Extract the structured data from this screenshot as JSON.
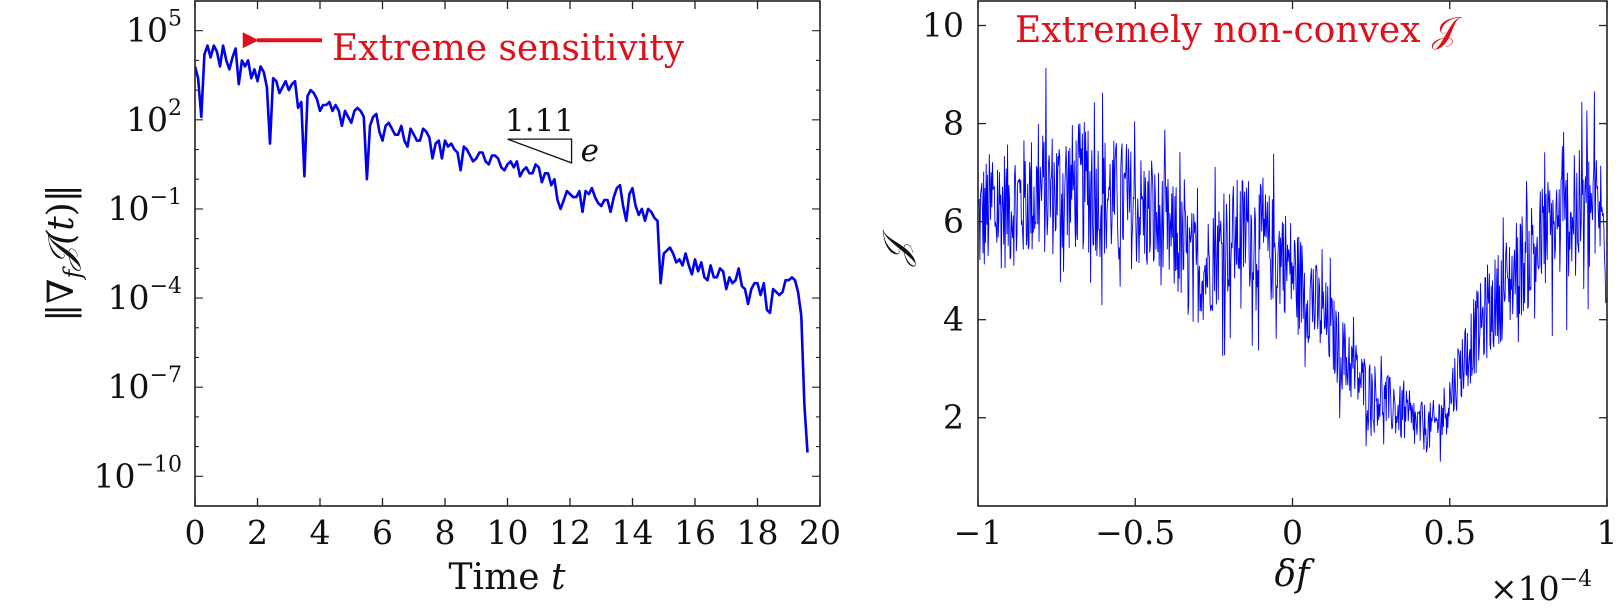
{
  "chart_data": [
    {
      "type": "line",
      "xlabel_text": "Time",
      "xlabel_var": "t",
      "ylabel": "‖∇_f 𝒥(t)‖",
      "ylabel_parts": {
        "open": "‖∇",
        "sub": "f",
        "mid": "𝒥(",
        "var": "t",
        "close": ")‖"
      },
      "xlim": [
        0,
        20
      ],
      "ylog_exp_range": [
        -11,
        6
      ],
      "xticks": [
        "0",
        "2",
        "4",
        "6",
        "8",
        "10",
        "12",
        "14",
        "16",
        "18",
        "20"
      ],
      "yticks": [
        {
          "base": "10",
          "exp": "5",
          "value": 5
        },
        {
          "base": "10",
          "exp": "2",
          "value": 2
        },
        {
          "base": "10",
          "exp": "−1",
          "value": -1
        },
        {
          "base": "10",
          "exp": "−4",
          "value": -4
        },
        {
          "base": "10",
          "exp": "−7",
          "value": -7
        },
        {
          "base": "10",
          "exp": "−10",
          "value": -10
        }
      ],
      "scale": "log",
      "grid": false,
      "color": "#0000ee",
      "annotation": {
        "text": "Extreme sensitivity",
        "color": "#e0101a",
        "arrow_tip": [
          1.7,
          4.68
        ]
      },
      "slope_triangle": {
        "top_label": "1.11",
        "side_label": "e",
        "p1": [
          10.0,
          1.35
        ],
        "p2": [
          12.05,
          0.55
        ],
        "p3": [
          12.05,
          1.35
        ]
      },
      "series": [
        {
          "x": [
            0.0,
            0.1,
            0.2,
            0.3,
            0.4,
            0.5,
            0.6,
            0.7,
            0.8,
            0.9,
            1.0,
            1.1,
            1.2,
            1.3,
            1.4,
            1.5,
            1.6,
            1.7,
            1.8,
            1.9,
            2.0,
            2.1,
            2.2,
            2.3,
            2.4,
            2.5,
            2.6,
            2.7,
            2.8,
            2.9,
            3.0,
            3.1,
            3.2,
            3.3,
            3.4,
            3.5,
            3.6,
            3.7,
            3.8,
            3.9,
            4.0,
            4.1,
            4.2,
            4.3,
            4.4,
            4.5,
            4.6,
            4.7,
            4.8,
            4.9,
            5.0,
            5.1,
            5.2,
            5.3,
            5.4,
            5.5,
            5.6,
            5.7,
            5.8,
            5.9,
            6.0,
            6.1,
            6.2,
            6.3,
            6.4,
            6.5,
            6.6,
            6.7,
            6.8,
            6.9,
            7.0,
            7.1,
            7.2,
            7.3,
            7.4,
            7.5,
            7.6,
            7.7,
            7.8,
            7.9,
            8.0,
            8.1,
            8.2,
            8.3,
            8.4,
            8.5,
            8.6,
            8.7,
            8.8,
            8.9,
            9.0,
            9.1,
            9.2,
            9.3,
            9.4,
            9.5,
            9.6,
            9.7,
            9.8,
            9.9,
            10.0,
            10.1,
            10.2,
            10.3,
            10.4,
            10.5,
            10.6,
            10.7,
            10.8,
            10.9,
            11.0,
            11.1,
            11.2,
            11.3,
            11.4,
            11.5,
            11.6,
            11.7,
            11.8,
            11.9,
            12.0,
            12.1,
            12.2,
            12.3,
            12.4,
            12.5,
            12.6,
            12.7,
            12.8,
            12.9,
            13.0,
            13.1,
            13.2,
            13.3,
            13.4,
            13.5,
            13.6,
            13.7,
            13.8,
            13.9,
            14.0,
            14.1,
            14.2,
            14.3,
            14.4,
            14.5,
            14.6,
            14.7,
            14.8,
            14.9,
            15.0,
            15.1,
            15.2,
            15.3,
            15.4,
            15.5,
            15.6,
            15.7,
            15.8,
            15.9,
            16.0,
            16.1,
            16.2,
            16.3,
            16.4,
            16.5,
            16.6,
            16.7,
            16.8,
            16.9,
            17.0,
            17.1,
            17.2,
            17.3,
            17.4,
            17.5,
            17.6,
            17.7,
            17.8,
            17.9,
            18.0,
            18.1,
            18.2,
            18.3,
            18.4,
            18.5,
            18.6,
            18.7,
            18.8,
            18.9,
            19.0,
            19.1,
            19.2,
            19.3,
            19.4,
            19.5,
            19.6,
            19.7,
            19.8,
            19.9,
            20.0
          ],
          "log10_y": [
            3.8,
            3.4,
            2.1,
            4.2,
            4.5,
            4.1,
            4.5,
            4.3,
            3.8,
            4.5,
            4.0,
            3.7,
            4.1,
            4.4,
            3.2,
            4.0,
            3.8,
            4.0,
            3.4,
            3.7,
            3.3,
            3.8,
            3.6,
            3.1,
            1.2,
            3.4,
            3.3,
            2.9,
            3.1,
            3.3,
            3.0,
            3.2,
            3.3,
            2.4,
            2.6,
            0.1,
            2.8,
            3.0,
            2.9,
            2.7,
            2.3,
            2.5,
            2.5,
            2.6,
            2.3,
            2.5,
            2.3,
            1.8,
            2.3,
            2.1,
            1.9,
            2.3,
            2.4,
            2.3,
            2.1,
            0.0,
            1.8,
            2.1,
            2.2,
            1.6,
            1.3,
            1.8,
            1.9,
            1.7,
            1.5,
            1.5,
            1.8,
            1.3,
            1.1,
            1.7,
            1.5,
            1.3,
            1.3,
            1.7,
            1.6,
            1.4,
            0.7,
            1.2,
            1.3,
            0.7,
            1.3,
            1.1,
            1.2,
            1.0,
            0.9,
            0.3,
            1.1,
            1.0,
            0.8,
            0.6,
            0.7,
            0.9,
            0.9,
            0.6,
            0.5,
            0.8,
            0.8,
            0.7,
            0.4,
            0.3,
            0.5,
            0.6,
            0.4,
            0.6,
            0.1,
            0.3,
            0.4,
            0.2,
            0.2,
            0.5,
            0.4,
            -0.1,
            0.2,
            0.2,
            -0.2,
            0.0,
            -0.7,
            -1.0,
            -0.7,
            -0.4,
            -0.5,
            -0.6,
            -0.6,
            -0.4,
            -1.1,
            -0.4,
            -0.5,
            -0.3,
            -0.6,
            -0.8,
            -0.9,
            -0.7,
            -0.7,
            -1.1,
            -0.6,
            -0.3,
            -0.2,
            -0.9,
            -1.4,
            -0.5,
            -0.3,
            -0.9,
            -1.2,
            -1.0,
            -1.4,
            -1.0,
            -1.1,
            -1.3,
            -1.4,
            -3.5,
            -2.5,
            -2.4,
            -2.3,
            -2.5,
            -2.8,
            -2.7,
            -2.9,
            -2.5,
            -2.9,
            -3.2,
            -2.7,
            -3.1,
            -2.8,
            -3.3,
            -3.4,
            -2.9,
            -3.3,
            -3.3,
            -3.0,
            -3.1,
            -3.7,
            -3.3,
            -3.5,
            -3.4,
            -3.0,
            -3.6,
            -3.7,
            -4.2,
            -3.7,
            -3.5,
            -3.5,
            -3.9,
            -3.5,
            -4.4,
            -4.5,
            -3.7,
            -3.8,
            -3.9,
            -3.8,
            -3.4,
            -3.4,
            -3.3,
            -3.4,
            -3.8,
            -4.6,
            -7.6,
            -9.2
          ]
        }
      ]
    },
    {
      "type": "line",
      "xlabel": "δf",
      "ylabel": "𝒥",
      "xlim": [
        -1,
        1
      ],
      "ylim": [
        0.2,
        10.5
      ],
      "xticks": [
        "−1",
        "−0.5",
        "0",
        "0.5",
        "1"
      ],
      "yticks": [
        "2",
        "4",
        "6",
        "8",
        "10"
      ],
      "x_multiplier": {
        "base": "×10",
        "exp": "−4"
      },
      "grid": false,
      "color": "#0000ff",
      "annotation": {
        "text": "Extremely non-convex 𝒥",
        "color": "#e0101a"
      },
      "series": [
        {
          "x": [
            -1.0,
            -0.98,
            -0.96,
            -0.94,
            -0.92,
            -0.9,
            -0.88,
            -0.86,
            -0.84,
            -0.82,
            -0.8,
            -0.78,
            -0.76,
            -0.74,
            -0.72,
            -0.7,
            -0.68,
            -0.66,
            -0.64,
            -0.62,
            -0.6,
            -0.58,
            -0.56,
            -0.54,
            -0.52,
            -0.5,
            -0.48,
            -0.46,
            -0.44,
            -0.42,
            -0.4,
            -0.38,
            -0.36,
            -0.34,
            -0.32,
            -0.3,
            -0.28,
            -0.26,
            -0.24,
            -0.22,
            -0.2,
            -0.18,
            -0.16,
            -0.14,
            -0.12,
            -0.1,
            -0.08,
            -0.06,
            -0.04,
            -0.02,
            0.0,
            0.02,
            0.04,
            0.06,
            0.08,
            0.1,
            0.12,
            0.14,
            0.16,
            0.18,
            0.2,
            0.22,
            0.24,
            0.26,
            0.28,
            0.3,
            0.32,
            0.34,
            0.36,
            0.38,
            0.4,
            0.42,
            0.44,
            0.46,
            0.48,
            0.5,
            0.52,
            0.54,
            0.56,
            0.58,
            0.6,
            0.62,
            0.64,
            0.66,
            0.68,
            0.7,
            0.72,
            0.74,
            0.76,
            0.78,
            0.8,
            0.82,
            0.84,
            0.86,
            0.88,
            0.9,
            0.92,
            0.94,
            0.96,
            0.98,
            1.0
          ],
          "y_mean": [
            6.0,
            6.1,
            6.2,
            6.2,
            6.3,
            6.3,
            6.4,
            6.4,
            6.5,
            6.5,
            6.6,
            6.6,
            6.6,
            6.6,
            6.7,
            6.7,
            6.7,
            6.7,
            6.6,
            6.6,
            6.5,
            6.5,
            6.4,
            6.4,
            6.3,
            6.3,
            6.2,
            6.1,
            6.0,
            5.9,
            5.8,
            5.6,
            5.5,
            5.3,
            5.2,
            5.0,
            5.0,
            5.2,
            5.4,
            5.5,
            5.6,
            5.7,
            5.8,
            5.8,
            5.7,
            5.6,
            5.5,
            5.4,
            5.3,
            5.2,
            5.0,
            4.8,
            4.6,
            4.4,
            4.2,
            4.0,
            3.8,
            3.5,
            3.3,
            3.1,
            2.9,
            2.7,
            2.6,
            2.5,
            2.4,
            2.3,
            2.2,
            2.1,
            2.0,
            1.9,
            1.8,
            1.8,
            1.8,
            1.9,
            2.1,
            2.4,
            2.8,
            3.1,
            3.4,
            3.7,
            3.9,
            4.1,
            4.3,
            4.5,
            4.7,
            4.9,
            5.1,
            5.2,
            5.4,
            5.5,
            5.7,
            5.8,
            5.9,
            6.0,
            6.1,
            6.2,
            6.2,
            6.3,
            6.3,
            6.2,
            5.0
          ],
          "noise_amplitude": 1.35,
          "samples": 1000
        }
      ]
    }
  ]
}
